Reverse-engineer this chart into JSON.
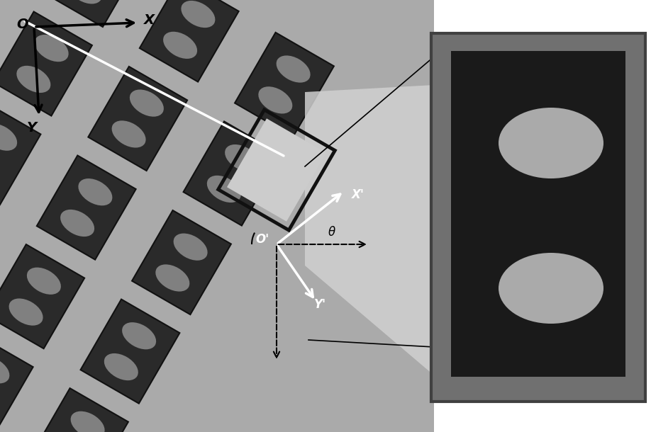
{
  "fig_width": 9.18,
  "fig_height": 6.1,
  "bg_color": "#ffffff",
  "left_panel_bg": "#b0b0b0",
  "left_panel_dark": "#555555",
  "tile_color": "#2a2a2a",
  "tile_border": "#1a1a1a",
  "ellipse_color": "#808080",
  "zoomed_bg": "#6a6a6a",
  "zoomed_tile_bg": "#1e1e1e",
  "zoomed_ellipse_color": "#909090",
  "highlight_box_bg": "#d8d8d8",
  "connector_region_bg": "#cccccc",
  "white_arrow_color": "#ffffff",
  "black_arrow_color": "#111111",
  "dashed_arrow_color": "#111111",
  "angle_annotation_color": "#111111",
  "text_color": "#111111",
  "O_label": "O",
  "X_label": "X",
  "Y_label": "Y",
  "Op_label": "O'",
  "Xp_label": "X'",
  "Yp_label": "Y'",
  "theta_label": "θ"
}
